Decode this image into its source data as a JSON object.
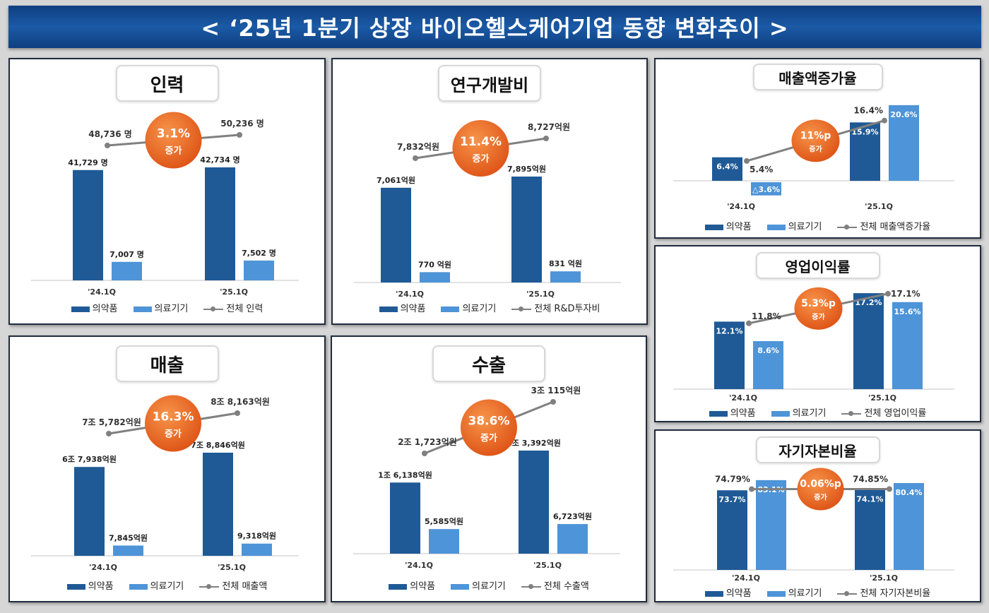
{
  "header": {
    "title": "< ‘25년 1분기 상장 바이오헬스케어기업 동향 변화추이 >"
  },
  "colors": {
    "pharma": "#1f5a96",
    "device": "#4e94d8",
    "total_line": "#808080",
    "badge": "#ea6a22",
    "header": "#154c94"
  },
  "chart_data": [
    {
      "type": "bar",
      "title": "인력",
      "categories": [
        "'24.1Q",
        "'25.1Q"
      ],
      "series": [
        {
          "name": "의약품",
          "values": [
            41729,
            42734
          ],
          "labels": [
            "41,729 명",
            "42,734 명"
          ]
        },
        {
          "name": "의료기기",
          "values": [
            7007,
            7502
          ],
          "labels": [
            "7,007 명",
            "7,502 명"
          ]
        }
      ],
      "line": {
        "name": "전체 인력",
        "values": [
          48736,
          50236
        ],
        "labels": [
          "48,736 명",
          "50,236 명"
        ]
      },
      "badge": {
        "value": "3.1%",
        "text": "증가"
      }
    },
    {
      "type": "bar",
      "title": "연구개발비",
      "categories": [
        "'24.1Q",
        "'25.1Q"
      ],
      "series": [
        {
          "name": "의약품",
          "values": [
            7061,
            7895
          ],
          "labels": [
            "7,061억원",
            "7,895억원"
          ]
        },
        {
          "name": "의료기기",
          "values": [
            770,
            831
          ],
          "labels": [
            "770 억원",
            "831 억원"
          ]
        }
      ],
      "line": {
        "name": "전체 R&D투자비",
        "values": [
          7832,
          8727
        ],
        "labels": [
          "7,832억원",
          "8,727억원"
        ]
      },
      "badge": {
        "value": "11.4%",
        "text": "증가"
      }
    },
    {
      "type": "bar",
      "title": "매출",
      "categories": [
        "'24.1Q",
        "'25.1Q"
      ],
      "series": [
        {
          "name": "의약품",
          "values": [
            67938,
            78846
          ],
          "labels": [
            "6조 7,938억원",
            "7조 8,846억원"
          ]
        },
        {
          "name": "의료기기",
          "values": [
            7845,
            9318
          ],
          "labels": [
            "7,845억원",
            "9,318억원"
          ]
        }
      ],
      "line": {
        "name": "전체 매출액",
        "values": [
          75782,
          88163
        ],
        "labels": [
          "7조 5,782억원",
          "8조 8,163억원"
        ]
      },
      "badge": {
        "value": "16.3%",
        "text": "증가"
      }
    },
    {
      "type": "bar",
      "title": "수출",
      "categories": [
        "'24.1Q",
        "'25.1Q"
      ],
      "series": [
        {
          "name": "의약품",
          "values": [
            16138,
            23392
          ],
          "labels": [
            "1조 6,138억원",
            "2조 3,392억원"
          ]
        },
        {
          "name": "의료기기",
          "values": [
            5585,
            6723
          ],
          "labels": [
            "5,585억원",
            "6,723억원"
          ]
        }
      ],
      "line": {
        "name": "전체 수출액",
        "values": [
          21723,
          30115
        ],
        "labels": [
          "2조 1,723억원",
          "3조 115억원"
        ]
      },
      "badge": {
        "value": "38.6%",
        "text": "증가"
      }
    },
    {
      "type": "bar",
      "title": "매출액증가율",
      "categories": [
        "'24.1Q",
        "'25.1Q"
      ],
      "series": [
        {
          "name": "의약품",
          "values": [
            6.4,
            15.9
          ],
          "labels": [
            "6.4%",
            "15.9%"
          ]
        },
        {
          "name": "의료기기",
          "values": [
            -3.6,
            20.6
          ],
          "labels": [
            "△3.6%",
            "20.6%"
          ]
        }
      ],
      "line": {
        "name": "전체 매출액증가율",
        "values": [
          5.4,
          16.4
        ],
        "labels": [
          "5.4%",
          "16.4%"
        ]
      },
      "badge": {
        "value": "11%p",
        "text": "증가"
      }
    },
    {
      "type": "bar",
      "title": "영업이익률",
      "categories": [
        "'24.1Q",
        "'25.1Q"
      ],
      "series": [
        {
          "name": "의약품",
          "values": [
            12.1,
            17.2
          ],
          "labels": [
            "12.1%",
            "17.2%"
          ]
        },
        {
          "name": "의료기기",
          "values": [
            8.6,
            15.6
          ],
          "labels": [
            "8.6%",
            "15.6%"
          ]
        }
      ],
      "line": {
        "name": "전체 영업이익률",
        "values": [
          11.8,
          17.1
        ],
        "labels": [
          "11.8%",
          "17.1%"
        ]
      },
      "badge": {
        "value": "5.3%p",
        "text": "증가"
      }
    },
    {
      "type": "bar",
      "title": "자기자본비율",
      "categories": [
        "'24.1Q",
        "'25.1Q"
      ],
      "series": [
        {
          "name": "의약품",
          "values": [
            73.7,
            74.1
          ],
          "labels": [
            "73.7%",
            "74.1%"
          ]
        },
        {
          "name": "의료기기",
          "values": [
            83.1,
            80.4
          ],
          "labels": [
            "83.1%",
            "80.4%"
          ]
        }
      ],
      "line": {
        "name": "전체 자기자본비율",
        "values": [
          74.79,
          74.85
        ],
        "labels": [
          "74.79%",
          "74.85%"
        ]
      },
      "badge": {
        "value": "0.06%p",
        "text": "증가"
      }
    }
  ]
}
